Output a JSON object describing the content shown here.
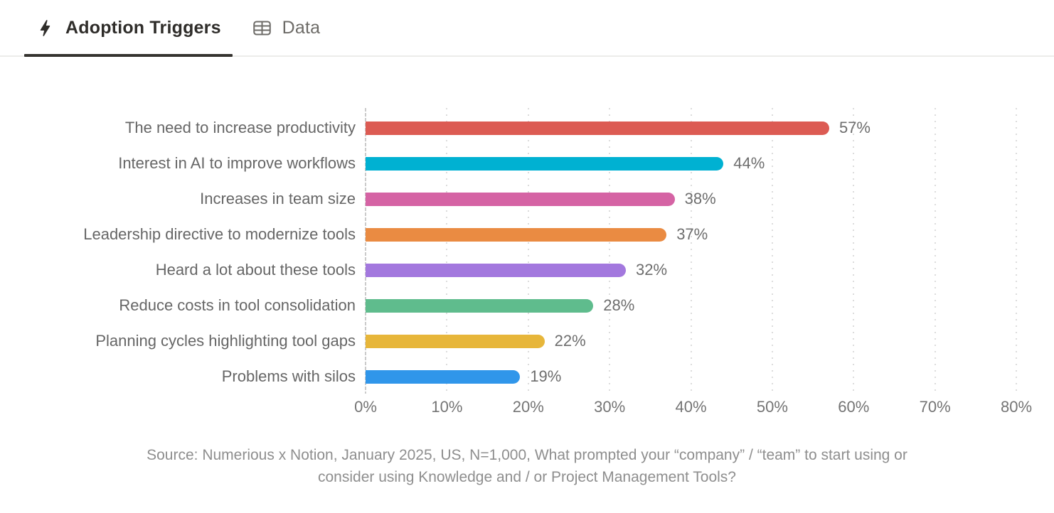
{
  "tabs": {
    "adoption": {
      "label": "Adoption Triggers",
      "active": true
    },
    "data": {
      "label": "Data",
      "active": false
    }
  },
  "chart_data": {
    "type": "bar",
    "orientation": "horizontal",
    "title": "Adoption Triggers",
    "categories": [
      "The need to increase productivity",
      "Interest in AI to improve workflows",
      "Increases in team size",
      "Leadership directive to modernize tools",
      "Heard a lot about these tools",
      "Reduce costs in tool consolidation",
      "Planning cycles highlighting tool gaps",
      "Problems with silos"
    ],
    "values": [
      57,
      44,
      38,
      37,
      32,
      28,
      22,
      19
    ],
    "value_labels": [
      "57%",
      "44%",
      "38%",
      "37%",
      "32%",
      "28%",
      "22%",
      "19%"
    ],
    "bar_colors": [
      "#DC5B53",
      "#00B1D2",
      "#D563A4",
      "#EA8B42",
      "#A378DE",
      "#5FBC8D",
      "#E7B63A",
      "#3096EA"
    ],
    "xlim": [
      0,
      80
    ],
    "x_tick_values": [
      0,
      10,
      20,
      30,
      40,
      50,
      60,
      70,
      80
    ],
    "x_tick_labels": [
      "0%",
      "10%",
      "20%",
      "30%",
      "40%",
      "50%",
      "60%",
      "70%",
      "80%"
    ],
    "grid": "vertical-dotted",
    "legend": "none"
  },
  "footer": {
    "source_line1": "Source: Numerious x Notion, January 2025, US, N=1,000, What prompted your “company” / “team” to start using or",
    "source_line2": "consider using Knowledge and / or Project Management Tools?"
  }
}
